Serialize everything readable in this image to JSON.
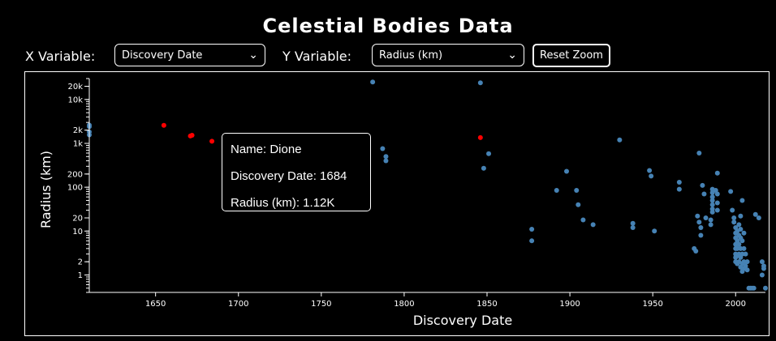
{
  "title": "Celestial Bodies Data",
  "controls": {
    "x_label": "X Variable:",
    "x_selected": "Discovery Date",
    "y_label": "Y Variable:",
    "y_selected": "Radius (km)",
    "reset_label": "Reset Zoom"
  },
  "tooltip": {
    "name_line": "Name: Dione",
    "x_line": "Discovery Date: 1684",
    "y_line": "Radius (km): 1.12K"
  },
  "colors": {
    "normal": "#4682b4",
    "highlight": "#ff0000",
    "background": "#000000",
    "foreground": "#ffffff"
  },
  "chart_data": {
    "type": "scatter",
    "xlabel": "Discovery Date",
    "ylabel": "Radius (km)",
    "xlim": [
      1610,
      2018
    ],
    "ylim": [
      0.4,
      30000
    ],
    "yscale": "log",
    "x_ticks": [
      1650,
      1700,
      1750,
      1800,
      1850,
      1900,
      1950,
      2000
    ],
    "y_ticks": [
      1,
      2,
      10,
      20,
      100,
      200,
      1000,
      2000,
      10000,
      20000
    ],
    "y_tick_labels": [
      "1",
      "2",
      "10",
      "20",
      "100",
      "200",
      "1k",
      "2k",
      "10k",
      "20k"
    ],
    "grid": false,
    "points": [
      {
        "x": 1610,
        "y": 2600
      },
      {
        "x": 1610,
        "y": 2400
      },
      {
        "x": 1610,
        "y": 1820
      },
      {
        "x": 1610,
        "y": 1560
      },
      {
        "x": 1655,
        "y": 2575,
        "hl": true
      },
      {
        "x": 1671,
        "y": 1470,
        "hl": true
      },
      {
        "x": 1672,
        "y": 1530,
        "hl": true
      },
      {
        "x": 1684,
        "y": 1120,
        "hl": true
      },
      {
        "x": 1846,
        "y": 1350,
        "hl": true
      },
      {
        "x": 1781,
        "y": 25000
      },
      {
        "x": 1846,
        "y": 24000
      },
      {
        "x": 1787,
        "y": 760
      },
      {
        "x": 1789,
        "y": 500
      },
      {
        "x": 1789,
        "y": 400
      },
      {
        "x": 1848,
        "y": 270
      },
      {
        "x": 1851,
        "y": 580
      },
      {
        "x": 1877,
        "y": 11
      },
      {
        "x": 1877,
        "y": 6
      },
      {
        "x": 1892,
        "y": 85
      },
      {
        "x": 1898,
        "y": 230
      },
      {
        "x": 1904,
        "y": 85
      },
      {
        "x": 1905,
        "y": 40
      },
      {
        "x": 1908,
        "y": 18
      },
      {
        "x": 1914,
        "y": 14
      },
      {
        "x": 1930,
        "y": 1200
      },
      {
        "x": 1938,
        "y": 15
      },
      {
        "x": 1938,
        "y": 12
      },
      {
        "x": 1948,
        "y": 240
      },
      {
        "x": 1949,
        "y": 180
      },
      {
        "x": 1951,
        "y": 10
      },
      {
        "x": 1966,
        "y": 130
      },
      {
        "x": 1966,
        "y": 90
      },
      {
        "x": 1975,
        "y": 4
      },
      {
        "x": 1976,
        "y": 3.5
      },
      {
        "x": 1977,
        "y": 22
      },
      {
        "x": 1978,
        "y": 16
      },
      {
        "x": 1978,
        "y": 600
      },
      {
        "x": 1979,
        "y": 12
      },
      {
        "x": 1979,
        "y": 8
      },
      {
        "x": 1980,
        "y": 110
      },
      {
        "x": 1981,
        "y": 70
      },
      {
        "x": 1982,
        "y": 20
      },
      {
        "x": 1985,
        "y": 18
      },
      {
        "x": 1985,
        "y": 14
      },
      {
        "x": 1986,
        "y": 90
      },
      {
        "x": 1986,
        "y": 75
      },
      {
        "x": 1986,
        "y": 60
      },
      {
        "x": 1986,
        "y": 50
      },
      {
        "x": 1986,
        "y": 40
      },
      {
        "x": 1986,
        "y": 32
      },
      {
        "x": 1986,
        "y": 27
      },
      {
        "x": 1988,
        "y": 85
      },
      {
        "x": 1989,
        "y": 210
      },
      {
        "x": 1989,
        "y": 70
      },
      {
        "x": 1989,
        "y": 44
      },
      {
        "x": 1989,
        "y": 30
      },
      {
        "x": 1997,
        "y": 80
      },
      {
        "x": 1998,
        "y": 30
      },
      {
        "x": 1999,
        "y": 20
      },
      {
        "x": 1999,
        "y": 16
      },
      {
        "x": 2000,
        "y": 12
      },
      {
        "x": 2000,
        "y": 9
      },
      {
        "x": 2000,
        "y": 7
      },
      {
        "x": 2000,
        "y": 5
      },
      {
        "x": 2000,
        "y": 4
      },
      {
        "x": 2000,
        "y": 3
      },
      {
        "x": 2000,
        "y": 2.5
      },
      {
        "x": 2000,
        "y": 2
      },
      {
        "x": 2001,
        "y": 10
      },
      {
        "x": 2001,
        "y": 6
      },
      {
        "x": 2001,
        "y": 4
      },
      {
        "x": 2001,
        "y": 2.8
      },
      {
        "x": 2001,
        "y": 1.8
      },
      {
        "x": 2002,
        "y": 14
      },
      {
        "x": 2002,
        "y": 8
      },
      {
        "x": 2002,
        "y": 5
      },
      {
        "x": 2002,
        "y": 3
      },
      {
        "x": 2002,
        "y": 2
      },
      {
        "x": 2003,
        "y": 22
      },
      {
        "x": 2003,
        "y": 11
      },
      {
        "x": 2003,
        "y": 7
      },
      {
        "x": 2003,
        "y": 4
      },
      {
        "x": 2003,
        "y": 2.5
      },
      {
        "x": 2003,
        "y": 1.5
      },
      {
        "x": 2004,
        "y": 50
      },
      {
        "x": 2004,
        "y": 6
      },
      {
        "x": 2004,
        "y": 3
      },
      {
        "x": 2004,
        "y": 1.8
      },
      {
        "x": 2004,
        "y": 1.2
      },
      {
        "x": 2005,
        "y": 9
      },
      {
        "x": 2005,
        "y": 4
      },
      {
        "x": 2005,
        "y": 2
      },
      {
        "x": 2005,
        "y": 1.4
      },
      {
        "x": 2006,
        "y": 3
      },
      {
        "x": 2006,
        "y": 1.6
      },
      {
        "x": 2007,
        "y": 2
      },
      {
        "x": 2007,
        "y": 1.3
      },
      {
        "x": 2008,
        "y": 0.5
      },
      {
        "x": 2009,
        "y": 0.5
      },
      {
        "x": 2010,
        "y": 0.5
      },
      {
        "x": 2011,
        "y": 0.5
      },
      {
        "x": 2012,
        "y": 24
      },
      {
        "x": 2014,
        "y": 20
      },
      {
        "x": 2016,
        "y": 2
      },
      {
        "x": 2016,
        "y": 1
      },
      {
        "x": 2017,
        "y": 1.6
      },
      {
        "x": 2017,
        "y": 1.4
      },
      {
        "x": 2018,
        "y": 0.5
      }
    ]
  }
}
